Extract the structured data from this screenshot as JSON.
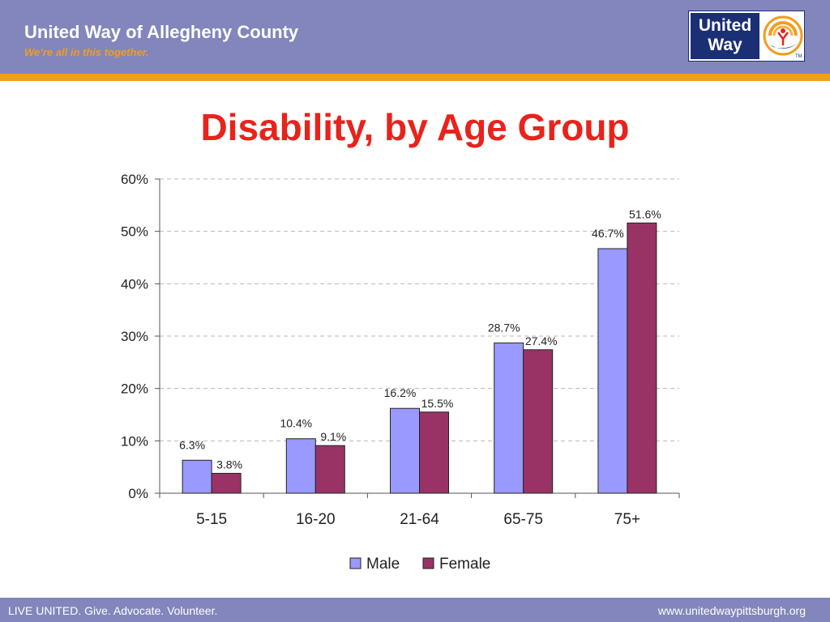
{
  "header": {
    "org_name": "United Way of Allegheny County",
    "tagline": "We’re all in this together.",
    "logo_line1": "United",
    "logo_line2": "Way",
    "logo_tm": "TM"
  },
  "slide": {
    "title": "Disability, by Age Group"
  },
  "footer": {
    "left": "LIVE UNITED. Give. Advocate. Volunteer.",
    "right": "www.unitedwaypittsburgh.org"
  },
  "chart_data": {
    "type": "bar",
    "title": "",
    "xlabel": "",
    "ylabel": "",
    "categories": [
      "5-15",
      "16-20",
      "21-64",
      "65-75",
      "75+"
    ],
    "series": [
      {
        "name": "Male",
        "values": [
          6.3,
          10.4,
          16.2,
          28.7,
          46.7
        ],
        "labels": [
          "6.3%",
          "10.4%",
          "16.2%",
          "28.7%",
          "46.7%"
        ],
        "color": "#9999ff"
      },
      {
        "name": "Female",
        "values": [
          3.8,
          9.1,
          15.5,
          27.4,
          51.6
        ],
        "labels": [
          "3.8%",
          "9.1%",
          "15.5%",
          "27.4%",
          "51.6%"
        ],
        "color": "#993366"
      }
    ],
    "ylim": [
      0,
      60
    ],
    "yticks": [
      "0%",
      "10%",
      "20%",
      "30%",
      "40%",
      "50%",
      "60%"
    ],
    "grid": true,
    "legend": "bottom"
  },
  "colors": {
    "header_bg": "#8286bc",
    "accent_orange": "#f39c1e",
    "title_red": "#e8231c",
    "logo_navy": "#1b2f75"
  }
}
